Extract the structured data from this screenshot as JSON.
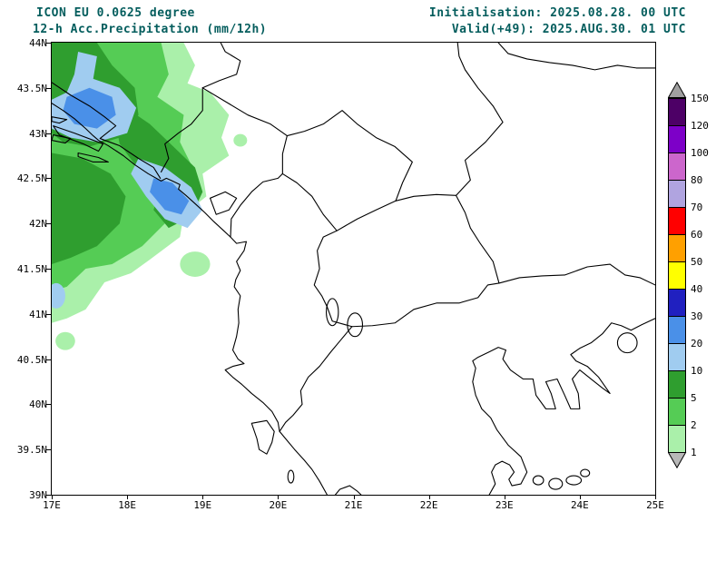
{
  "header": {
    "model_line": "ICON EU 0.0625 degree",
    "product_line": "12-h Acc.Precipitation (mm/12h)",
    "init_line": "Initialisation: 2025.08.28. 00 UTC",
    "valid_line": "Valid(+49): 2025.AUG.30. 01 UTC"
  },
  "colors": {
    "header_text": "#045D5D",
    "frame": "#000000",
    "coastline": "#000000",
    "background": "#ffffff"
  },
  "axes": {
    "x_ticks": [
      {
        "label": "17E",
        "lon": 17
      },
      {
        "label": "18E",
        "lon": 18
      },
      {
        "label": "19E",
        "lon": 19
      },
      {
        "label": "20E",
        "lon": 20
      },
      {
        "label": "21E",
        "lon": 21
      },
      {
        "label": "22E",
        "lon": 22
      },
      {
        "label": "23E",
        "lon": 23
      },
      {
        "label": "24E",
        "lon": 24
      },
      {
        "label": "25E",
        "lon": 25
      }
    ],
    "y_ticks": [
      {
        "label": "44N",
        "lat": 44
      },
      {
        "label": "43.5N",
        "lat": 43.5
      },
      {
        "label": "43N",
        "lat": 43
      },
      {
        "label": "42.5N",
        "lat": 42.5
      },
      {
        "label": "42N",
        "lat": 42
      },
      {
        "label": "41.5N",
        "lat": 41.5
      },
      {
        "label": "41N",
        "lat": 41
      },
      {
        "label": "40.5N",
        "lat": 40.5
      },
      {
        "label": "40N",
        "lat": 40
      },
      {
        "label": "39.5N",
        "lat": 39.5
      },
      {
        "label": "39N",
        "lat": 39
      }
    ]
  },
  "colorbar": {
    "units": "mm/12h",
    "levels_mm": [
      1,
      2,
      5,
      10,
      20,
      30,
      40,
      50,
      60,
      70,
      80,
      100,
      120,
      150
    ],
    "cells": [
      {
        "label": "150",
        "color": "#4d0066"
      },
      {
        "label": "120",
        "color": "#7d00c8"
      },
      {
        "label": "100",
        "color": "#cc66cc"
      },
      {
        "label": "80",
        "color": "#b0a4e0"
      },
      {
        "label": "70",
        "color": "#ff0000"
      },
      {
        "label": "60",
        "color": "#ffa000"
      },
      {
        "label": "50",
        "color": "#ffff00"
      },
      {
        "label": "40",
        "color": "#2020c0"
      },
      {
        "label": "30",
        "color": "#4a90e8"
      },
      {
        "label": "20",
        "color": "#a0ccf0"
      },
      {
        "label": "10",
        "color": "#2f9e2f"
      },
      {
        "label": "5",
        "color": "#55cc55"
      },
      {
        "label": "2",
        "color": "#aaf0aa"
      }
    ],
    "bottom_label": "1",
    "over_color": "#a0a0a0",
    "under_color": "#b8b8b8"
  },
  "map": {
    "palette": {
      "p1": "#aaf0aa",
      "p2": "#55cc55",
      "p5": "#2f9e2f",
      "p10": "#a0ccf0",
      "p20": "#4a90e8"
    }
  }
}
